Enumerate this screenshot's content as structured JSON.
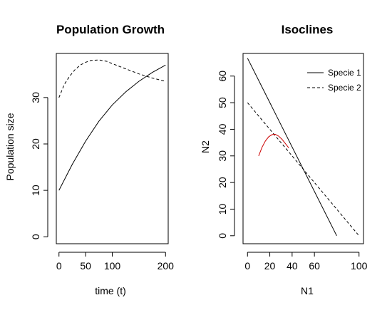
{
  "chart_data": [
    {
      "type": "line",
      "title": "Population Growth",
      "xlabel": "time (t)",
      "ylabel": "Population size",
      "xlim": [
        -5,
        205
      ],
      "ylim": [
        -1.5,
        39.5
      ],
      "xticks": [
        0,
        50,
        100,
        200
      ],
      "yticks": [
        0,
        10,
        20,
        30
      ],
      "grid": false,
      "series": [
        {
          "style": "solid",
          "color": "#000000",
          "x": [
            0,
            25,
            50,
            75,
            100,
            125,
            150,
            175,
            200
          ],
          "y": [
            10,
            15.6,
            20.6,
            24.9,
            28.4,
            31.2,
            33.5,
            35.4,
            37
          ]
        },
        {
          "style": "dashed",
          "color": "#000000",
          "x": [
            0,
            10,
            20,
            30,
            40,
            50,
            60,
            75,
            90,
            100,
            125,
            150,
            175,
            200
          ],
          "y": [
            30,
            32.8,
            34.6,
            36,
            37,
            37.6,
            38,
            38.1,
            37.8,
            37.3,
            36.2,
            35.1,
            34.2,
            33.5
          ]
        }
      ]
    },
    {
      "type": "line",
      "title": "Isoclines",
      "xlabel": "N1",
      "ylabel": "N2",
      "xlim": [
        -4,
        104
      ],
      "ylim": [
        -3,
        68.5
      ],
      "xticks": [
        0,
        20,
        40,
        60,
        100
      ],
      "yticks": [
        0,
        10,
        20,
        30,
        40,
        50,
        60
      ],
      "grid": false,
      "legend": {
        "position": "top-right",
        "entries": [
          {
            "label": "Specie 1",
            "style": "solid"
          },
          {
            "label": "Specie 2",
            "style": "dashed"
          }
        ]
      },
      "series": [
        {
          "name": "Specie 1",
          "style": "solid",
          "color": "#000000",
          "x": [
            0,
            80
          ],
          "y": [
            66.7,
            0
          ]
        },
        {
          "name": "Specie 2",
          "style": "dashed",
          "color": "#000000",
          "x": [
            0,
            100
          ],
          "y": [
            50,
            0
          ]
        },
        {
          "style": "solid",
          "color": "#cc0000",
          "x": [
            10,
            13,
            16,
            19,
            22,
            25,
            28,
            31,
            34,
            37
          ],
          "y": [
            30,
            33.2,
            35.6,
            37.2,
            38,
            38.1,
            37.4,
            36.2,
            34.6,
            33
          ]
        }
      ]
    }
  ]
}
